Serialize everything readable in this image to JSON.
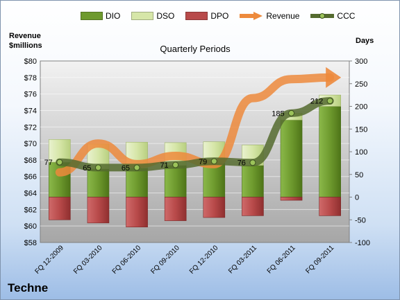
{
  "chart_data": {
    "type": "bar",
    "title": "Quarterly Periods",
    "company": "Techne",
    "ylabel_left": [
      "Revenue",
      "$millions"
    ],
    "ylabel_right": "Days",
    "categories": [
      "FQ 12-2009",
      "FQ 03-2010",
      "FQ 06-2010",
      "FQ 09-2010",
      "FQ 12-2010",
      "FQ 03-2011",
      "FQ 06-2011",
      "FQ 09-2011"
    ],
    "y_left": {
      "min": 58,
      "max": 80,
      "step": 2,
      "prefix": "$",
      "ticks": [
        "$58",
        "$60",
        "$62",
        "$64",
        "$66",
        "$68",
        "$70",
        "$72",
        "$74",
        "$76",
        "$78",
        "$80"
      ]
    },
    "y_right": {
      "min": -100,
      "max": 300,
      "step": 50,
      "ticks": [
        "-100",
        "-50",
        "0",
        "50",
        "100",
        "150",
        "200",
        "250",
        "300"
      ]
    },
    "series": [
      {
        "name": "DIO",
        "axis": "right",
        "kind": "bar",
        "color": "#6e9a2e",
        "values": [
          77,
          62,
          64,
          70,
          75,
          70,
          170,
          200
        ]
      },
      {
        "name": "DSO",
        "axis": "right",
        "kind": "bar",
        "color": "#d6e6a8",
        "values": [
          50,
          55,
          57,
          50,
          47,
          45,
          15,
          25
        ]
      },
      {
        "name": "DPO",
        "axis": "right",
        "kind": "bar",
        "color": "#b84a4a",
        "values": [
          -50,
          -57,
          -66,
          -52,
          -45,
          -41,
          -7,
          -41
        ]
      },
      {
        "name": "Revenue",
        "axis": "left",
        "kind": "arrow",
        "color": "#ed8a3c",
        "values": [
          66.5,
          70.0,
          67.5,
          68.5,
          67.5,
          75.5,
          77.8,
          78.0
        ]
      },
      {
        "name": "CCC",
        "axis": "right",
        "kind": "line",
        "color": "#556b2f",
        "values": [
          77,
          65,
          65,
          71,
          79,
          76,
          185,
          212
        ],
        "labels": [
          "77",
          "65",
          "65",
          "71",
          "79",
          "76",
          "185",
          "212"
        ]
      }
    ],
    "grid": true,
    "legend_position": "top"
  }
}
